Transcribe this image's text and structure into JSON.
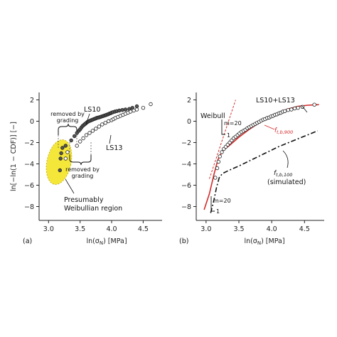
{
  "chart_data": [
    {
      "panel": "(a)",
      "type": "scatter",
      "xlabel": "ln(σ_N) [MPa]",
      "ylabel": "ln[−ln(1 − CDF)] [−]",
      "xlim": [
        2.85,
        4.8
      ],
      "ylim": [
        -9.3,
        2.7
      ],
      "xticks": [
        "3.0",
        "3.5",
        "4.0",
        "4.5"
      ],
      "yticks": [
        "2",
        "0",
        "−2",
        "−4",
        "−6",
        "−8"
      ],
      "series": [
        {
          "name": "LS10",
          "marker": "filled-dark",
          "x": [
            3.18,
            3.19,
            3.2,
            3.22,
            3.27,
            3.36,
            3.41,
            3.45,
            3.48,
            3.5,
            3.52,
            3.54,
            3.56,
            3.58,
            3.6,
            3.62,
            3.64,
            3.66,
            3.68,
            3.7,
            3.72,
            3.74,
            3.76,
            3.78,
            3.8,
            3.82,
            3.84,
            3.86,
            3.88,
            3.9,
            3.92,
            3.94,
            3.96,
            3.98,
            4.0,
            4.02,
            4.05,
            4.08,
            4.12,
            4.17,
            4.22,
            4.28,
            4.33,
            4.4
          ],
          "y": [
            -4.6,
            -3.5,
            -3.0,
            -2.5,
            -2.3,
            -1.8,
            -1.4,
            -1.1,
            -0.9,
            -0.75,
            -0.6,
            -0.45,
            -0.35,
            -0.25,
            -0.15,
            -0.05,
            0.0,
            0.05,
            0.1,
            0.15,
            0.2,
            0.25,
            0.3,
            0.33,
            0.36,
            0.4,
            0.44,
            0.48,
            0.52,
            0.56,
            0.6,
            0.65,
            0.7,
            0.75,
            0.8,
            0.85,
            0.9,
            0.95,
            1.0,
            1.05,
            1.1,
            1.15,
            1.25,
            1.4
          ]
        },
        {
          "name": "LS13",
          "marker": "open",
          "x": [
            3.27,
            3.3,
            3.45,
            3.5,
            3.55,
            3.6,
            3.65,
            3.7,
            3.75,
            3.8,
            3.85,
            3.9,
            3.95,
            4.0,
            4.03,
            4.06,
            4.1,
            4.14,
            4.18,
            4.22,
            4.26,
            4.3,
            4.35,
            4.4,
            4.5,
            4.62
          ],
          "y": [
            -3.5,
            -2.9,
            -2.3,
            -1.9,
            -1.6,
            -1.3,
            -1.1,
            -0.9,
            -0.7,
            -0.5,
            -0.3,
            -0.15,
            0.0,
            0.1,
            0.2,
            0.3,
            0.4,
            0.5,
            0.6,
            0.7,
            0.8,
            0.9,
            1.0,
            1.1,
            1.25,
            1.6
          ]
        }
      ],
      "annotations": {
        "ls10": "LS10",
        "ls13": "LS13",
        "grading_top_1": "removed by",
        "grading_top_2": "grading",
        "grading_bot_1": "removed by",
        "grading_bot_2": "grading",
        "region_1": "Presumably",
        "region_2": "Weibullian region",
        "panel": "(a)"
      },
      "colors": {
        "highlight": "#f5e63a",
        "filled": "#555555"
      }
    },
    {
      "panel": "(b)",
      "type": "scatter",
      "xlabel": "ln(σ_N) [MPa]",
      "xlim": [
        2.85,
        4.8
      ],
      "ylim": [
        -9.3,
        2.7
      ],
      "xticks": [
        "3.0",
        "3.5",
        "4.0",
        "4.5"
      ],
      "yticks": [
        "2",
        "0",
        "−2",
        "−4",
        "−6",
        "−8"
      ],
      "series": [
        {
          "name": "LS10+LS13",
          "marker": "open",
          "x": [
            3.14,
            3.17,
            3.19,
            3.21,
            3.24,
            3.27,
            3.3,
            3.33,
            3.36,
            3.39,
            3.42,
            3.45,
            3.48,
            3.51,
            3.54,
            3.57,
            3.6,
            3.63,
            3.66,
            3.69,
            3.72,
            3.75,
            3.78,
            3.81,
            3.84,
            3.87,
            3.9,
            3.93,
            3.96,
            3.99,
            4.02,
            4.05,
            4.08,
            4.11,
            4.14,
            4.17,
            4.2,
            4.25,
            4.3,
            4.35,
            4.4,
            4.47,
            4.65
          ],
          "y": [
            -5.3,
            -4.4,
            -3.8,
            -3.3,
            -2.9,
            -2.6,
            -2.4,
            -2.2,
            -2.0,
            -1.8,
            -1.6,
            -1.45,
            -1.3,
            -1.15,
            -1.0,
            -0.9,
            -0.8,
            -0.65,
            -0.55,
            -0.45,
            -0.35,
            -0.25,
            -0.15,
            -0.05,
            0.05,
            0.15,
            0.2,
            0.3,
            0.35,
            0.45,
            0.5,
            0.6,
            0.65,
            0.75,
            0.8,
            0.9,
            0.95,
            1.05,
            1.1,
            1.2,
            1.25,
            1.35,
            1.55
          ]
        },
        {
          "name": "f_t,b,900",
          "style": "solid-red",
          "x": [
            2.97,
            3.05,
            3.12,
            3.18,
            3.25,
            3.35,
            3.5,
            3.65,
            3.8,
            3.95,
            4.1,
            4.25,
            4.4,
            4.55,
            4.72
          ],
          "y": [
            -8.3,
            -6.8,
            -5.0,
            -3.6,
            -2.8,
            -2.3,
            -1.5,
            -0.8,
            -0.2,
            0.4,
            0.8,
            1.15,
            1.4,
            1.5,
            1.55
          ]
        },
        {
          "name": "Weibull",
          "style": "dashed-red",
          "x": [
            3.05,
            3.45
          ],
          "y": [
            -5.4,
            2.0
          ]
        },
        {
          "name": "f_t,b,100 (simulated)",
          "style": "dashdot-black",
          "x": [
            3.07,
            3.12,
            3.16,
            3.2,
            3.25,
            3.35,
            3.5,
            3.7,
            3.9,
            4.1,
            4.3,
            4.5,
            4.7
          ],
          "y": [
            -8.6,
            -7.4,
            -6.2,
            -5.3,
            -4.9,
            -4.6,
            -4.2,
            -3.6,
            -3.0,
            -2.4,
            -1.9,
            -1.4,
            -0.9
          ]
        }
      ],
      "annotations": {
        "ls": "LS10+LS13",
        "weibull": "Weibull",
        "m_top": "m=20",
        "one_top": "1",
        "m_bot": "m=20",
        "one_bot": "1",
        "f900": "f_t,b,900",
        "f100": "f_t,b,100",
        "simulated": "(simulated)",
        "panel": "(b)"
      },
      "colors": {
        "fit": "#d42a2a",
        "sim": "#111111"
      }
    }
  ]
}
